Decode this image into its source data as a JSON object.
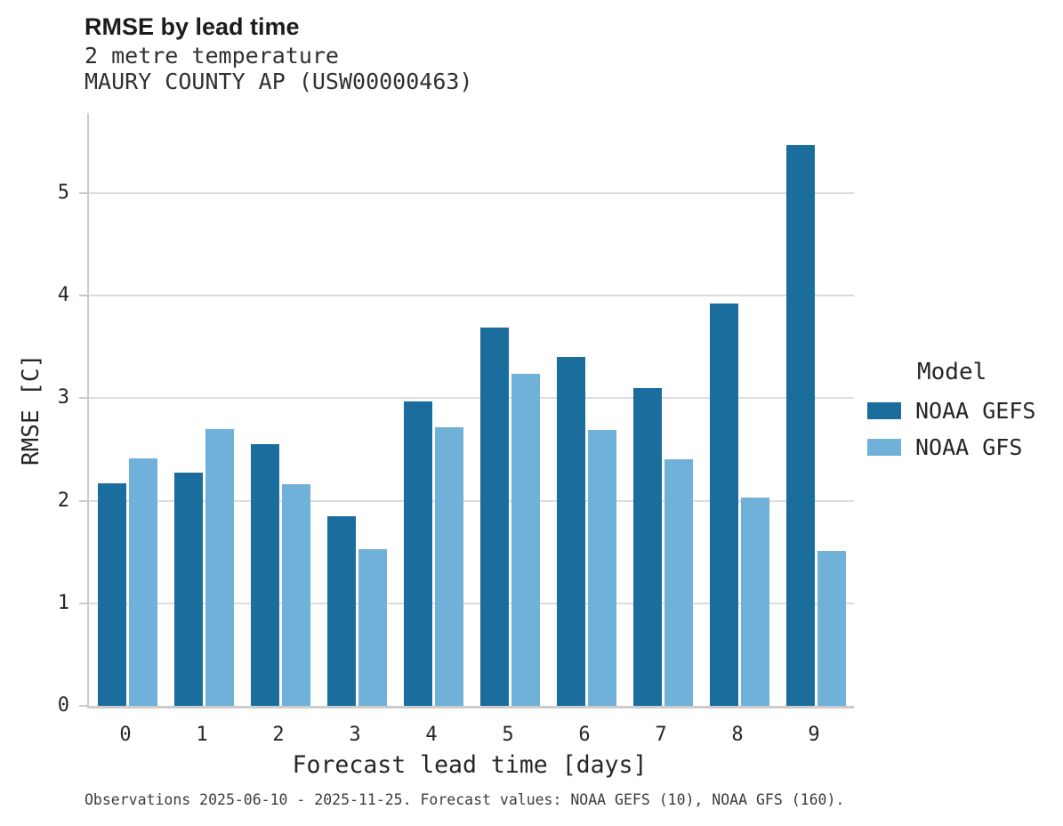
{
  "title": "RMSE by lead time",
  "subtitle1": "2 metre temperature",
  "subtitle2": "MAURY COUNTY AP (USW00000463)",
  "caption": "Observations 2025-06-10 - 2025-11-25. Forecast values: NOAA GEFS (10), NOAA GFS (160).",
  "legend": {
    "title": "Model",
    "entries": [
      {
        "label": "NOAA GEFS",
        "color": "#1b6d9e"
      },
      {
        "label": "NOAA GFS",
        "color": "#6fb1d9"
      }
    ]
  },
  "chart_data": {
    "type": "bar",
    "title": "RMSE by lead time",
    "subtitle": "2 metre temperature — MAURY COUNTY AP (USW00000463)",
    "xlabel": "Forecast lead time [days]",
    "ylabel": "RMSE [C]",
    "categories": [
      "0",
      "1",
      "2",
      "3",
      "4",
      "5",
      "6",
      "7",
      "8",
      "9"
    ],
    "series": [
      {
        "name": "NOAA GEFS",
        "color": "#1b6d9e",
        "values": [
          2.17,
          2.27,
          2.55,
          1.85,
          2.97,
          3.69,
          3.4,
          3.1,
          3.92,
          5.47
        ]
      },
      {
        "name": "NOAA GFS",
        "color": "#6fb1d9",
        "values": [
          2.41,
          2.7,
          2.16,
          1.53,
          2.72,
          3.24,
          2.69,
          2.4,
          2.03,
          1.51
        ]
      }
    ],
    "yticks": [
      0,
      1,
      2,
      3,
      4,
      5
    ],
    "ylim": [
      0,
      5.78
    ],
    "grid": true,
    "legend_position": "right",
    "grid_color": "#dcdcdc",
    "axis_color": "#cccccc"
  }
}
